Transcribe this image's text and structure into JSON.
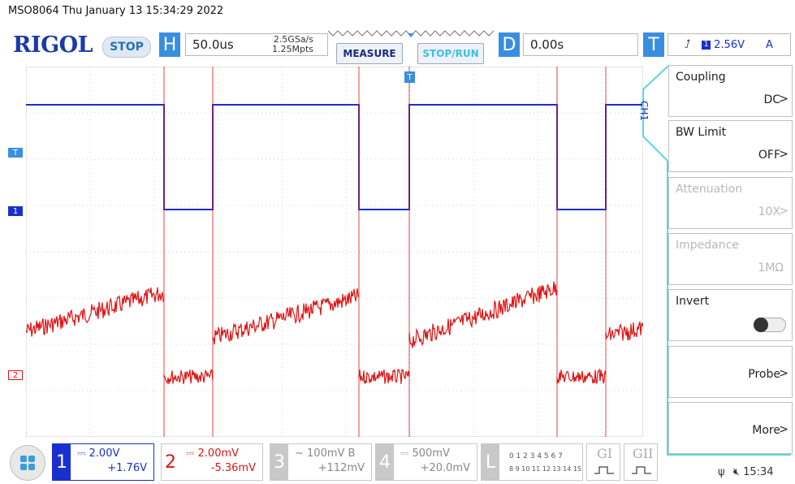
{
  "title_bar": "MSO8064  Thu January 13 15:34:29 2022",
  "logo": "RIGOL",
  "run_state": "STOP",
  "horizontal": {
    "letter": "H",
    "timebase": "50.0us",
    "sample_rate": "2.5GSa/s",
    "memory_depth": "1.25Mpts"
  },
  "buttons": {
    "measure": "MEASURE",
    "stop_run": "STOP/RUN"
  },
  "delay": {
    "letter": "D",
    "value": "0.00s"
  },
  "trigger": {
    "letter": "T",
    "level": "2.56V",
    "mode": "A",
    "source": "1"
  },
  "ch1_tab": "CH1",
  "menu": [
    {
      "label": "Coupling",
      "value": "DC",
      "enabled": true
    },
    {
      "label": "BW Limit",
      "value": "OFF",
      "enabled": true
    },
    {
      "label": "Attenuation",
      "value": "10X",
      "enabled": false
    },
    {
      "label": "Impedance",
      "value": "1MΩ",
      "enabled": false
    },
    {
      "label": "Invert",
      "value": "",
      "enabled": true
    },
    {
      "label": "",
      "value": "Probe",
      "enabled": true
    },
    {
      "label": "",
      "value": "More",
      "enabled": true
    }
  ],
  "channels": [
    {
      "num": "1",
      "scale": "2.00V",
      "offset": "+1.76V",
      "color": "#1a2fd0"
    },
    {
      "num": "2",
      "scale": "2.00mV",
      "offset": "-5.36mV",
      "color": "#e01414"
    },
    {
      "num": "3",
      "scale": "100mV",
      "bw": "B",
      "offset": "+112mV",
      "color": "#b0b0b0"
    },
    {
      "num": "4",
      "scale": "500mV",
      "offset": "+20.0mV",
      "color": "#b0b0b0"
    }
  ],
  "logic": {
    "letter": "L",
    "row1": "0 1 2 3  4 5 6 7",
    "row2": "8 9 10 11 12 13 14 15"
  },
  "gi": "GI",
  "gii": "GII",
  "markers": {
    "ch1_trig": "T",
    "ch1": "1",
    "ch2": "2",
    "trig_top": "T"
  },
  "status_time": "15:34",
  "colors": {
    "accent": "#3a8ee0",
    "ch1": "#1a2fd0",
    "ch2": "#e01414",
    "menu_border": "#5ad6e0"
  }
}
